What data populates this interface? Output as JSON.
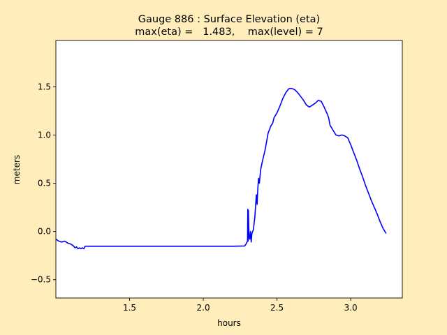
{
  "colors": {
    "figure_bg": "#ffeebb",
    "axes_bg": "#ffffff",
    "line": "#0000ff"
  },
  "chart_data": {
    "type": "line",
    "title_line1": "Gauge 886 : Surface Elevation (eta)",
    "title_line2": "max(eta) =   1.483,    max(level) = 7",
    "xlabel": "hours",
    "ylabel": "meters",
    "xlim": [
      1.0,
      3.35
    ],
    "ylim": [
      -0.69,
      1.98
    ],
    "xticks": [
      1.5,
      2.0,
      2.5,
      3.0
    ],
    "xtick_labels": [
      "1.5",
      "2.0",
      "2.5",
      "3.0"
    ],
    "yticks": [
      -0.5,
      0.0,
      0.5,
      1.0,
      1.5
    ],
    "ytick_labels": [
      "−0.5",
      "0.0",
      "0.5",
      "1.0",
      "1.5"
    ],
    "grid": false,
    "series": [
      {
        "x": [
          1.0,
          1.02,
          1.04,
          1.06,
          1.07,
          1.08,
          1.1,
          1.12,
          1.13,
          1.14,
          1.15,
          1.16,
          1.17,
          1.18,
          1.19,
          1.195,
          1.2,
          1.4,
          1.6,
          1.8,
          2.0,
          2.2,
          2.28,
          2.29,
          2.3,
          2.302,
          2.304,
          2.306,
          2.31,
          2.315,
          2.32,
          2.325,
          2.33,
          2.34,
          2.35,
          2.36,
          2.365,
          2.37,
          2.375,
          2.38,
          2.39,
          2.4,
          2.42,
          2.44,
          2.46,
          2.47,
          2.48,
          2.5,
          2.52,
          2.54,
          2.56,
          2.58,
          2.6,
          2.62,
          2.64,
          2.66,
          2.68,
          2.7,
          2.72,
          2.74,
          2.76,
          2.78,
          2.8,
          2.82,
          2.84,
          2.85,
          2.86,
          2.88,
          2.9,
          2.92,
          2.94,
          2.96,
          2.98,
          3.0,
          3.02,
          3.04,
          3.06,
          3.08,
          3.1,
          3.12,
          3.14,
          3.16,
          3.18,
          3.2,
          3.22,
          3.24
        ],
        "y": [
          -0.08,
          -0.1,
          -0.11,
          -0.1,
          -0.11,
          -0.12,
          -0.13,
          -0.15,
          -0.17,
          -0.16,
          -0.18,
          -0.17,
          -0.18,
          -0.17,
          -0.18,
          -0.16,
          -0.153,
          -0.153,
          -0.153,
          -0.153,
          -0.153,
          -0.153,
          -0.15,
          -0.13,
          -0.1,
          0.23,
          -0.1,
          0.22,
          -0.05,
          -0.08,
          0.0,
          -0.11,
          -0.02,
          0.02,
          0.15,
          0.38,
          0.28,
          0.45,
          0.55,
          0.5,
          0.65,
          0.72,
          0.85,
          1.02,
          1.1,
          1.12,
          1.18,
          1.23,
          1.3,
          1.38,
          1.44,
          1.48,
          1.483,
          1.47,
          1.44,
          1.4,
          1.36,
          1.31,
          1.29,
          1.31,
          1.33,
          1.36,
          1.35,
          1.29,
          1.22,
          1.18,
          1.1,
          1.05,
          1.0,
          0.99,
          1.0,
          0.99,
          0.97,
          0.9,
          0.82,
          0.74,
          0.65,
          0.57,
          0.48,
          0.4,
          0.32,
          0.25,
          0.18,
          0.1,
          0.03,
          -0.02
        ]
      }
    ]
  }
}
